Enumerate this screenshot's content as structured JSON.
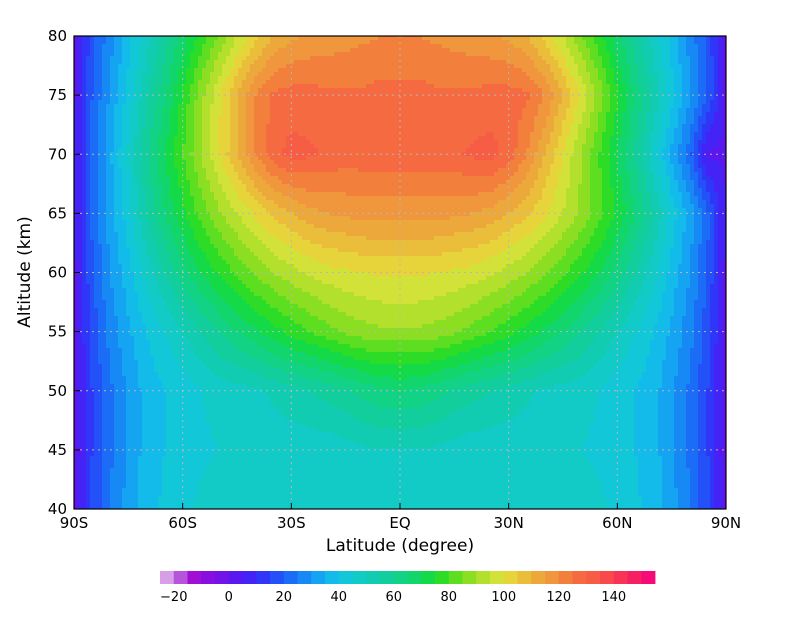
{
  "chart_data": {
    "type": "heatmap",
    "subtype": "filled-contour",
    "title": "",
    "xlabel": "Latitude (degree)",
    "ylabel": "Altitude (km)",
    "xlim": [
      -90,
      90
    ],
    "ylim": [
      40,
      80
    ],
    "x_ticks": [
      {
        "value": -90,
        "label": "90S"
      },
      {
        "value": -60,
        "label": "60S"
      },
      {
        "value": -30,
        "label": "30S"
      },
      {
        "value": 0,
        "label": "EQ"
      },
      {
        "value": 30,
        "label": "30N"
      },
      {
        "value": 60,
        "label": "60N"
      },
      {
        "value": 90,
        "label": "90N"
      }
    ],
    "y_ticks": [
      {
        "value": 40,
        "label": "40"
      },
      {
        "value": 45,
        "label": "45"
      },
      {
        "value": 50,
        "label": "50"
      },
      {
        "value": 55,
        "label": "55"
      },
      {
        "value": 60,
        "label": "60"
      },
      {
        "value": 65,
        "label": "65"
      },
      {
        "value": 70,
        "label": "70"
      },
      {
        "value": 75,
        "label": "75"
      },
      {
        "value": 80,
        "label": "80"
      }
    ],
    "grid": true,
    "grid_style": "dotted",
    "contour_interval": 5,
    "value_range": [
      -25,
      155
    ],
    "z_latitudes": [
      -90,
      -85,
      -80,
      -75,
      -70,
      -65,
      -60,
      -55,
      -50,
      -45,
      -40,
      -35,
      -30,
      -25,
      -20,
      -15,
      -10,
      -5,
      0,
      5,
      10,
      15,
      20,
      25,
      30,
      35,
      40,
      45,
      50,
      55,
      60,
      65,
      70,
      75,
      80,
      85,
      90
    ],
    "z_altitudes": [
      40,
      45,
      50,
      55,
      60,
      65,
      70,
      75,
      80
    ],
    "z_values": [
      [
        0,
        16,
        25,
        32,
        38,
        41,
        44,
        46,
        48,
        48,
        48,
        48,
        48,
        48,
        46,
        46,
        46,
        47,
        48,
        47,
        46,
        46,
        46,
        48,
        48,
        48,
        48,
        48,
        48,
        46,
        44,
        41,
        38,
        32,
        25,
        16,
        0
      ],
      [
        0,
        15,
        24,
        31,
        37,
        40,
        42,
        44,
        45,
        46,
        46,
        47,
        47,
        47,
        47,
        48,
        49,
        50,
        50,
        50,
        49,
        48,
        47,
        47,
        47,
        47,
        46,
        46,
        45,
        44,
        42,
        40,
        37,
        31,
        24,
        15,
        0
      ],
      [
        1,
        15,
        24,
        31,
        37,
        40,
        42,
        45,
        47,
        48,
        49,
        51,
        53,
        55,
        57,
        59,
        62,
        64,
        65,
        64,
        62,
        59,
        57,
        55,
        53,
        51,
        49,
        48,
        47,
        45,
        42,
        40,
        37,
        31,
        24,
        15,
        1
      ],
      [
        2,
        17,
        27,
        34,
        40,
        45,
        50,
        55,
        60,
        65,
        69,
        73,
        77,
        80,
        83,
        86,
        88,
        89,
        89,
        89,
        88,
        86,
        83,
        80,
        77,
        73,
        69,
        65,
        60,
        55,
        50,
        45,
        40,
        34,
        27,
        17,
        2
      ],
      [
        3,
        19,
        30,
        38,
        47,
        55,
        63,
        70,
        76,
        81,
        86,
        90,
        93,
        96,
        98,
        99,
        100,
        101,
        101,
        101,
        100,
        99,
        98,
        96,
        93,
        90,
        86,
        81,
        76,
        70,
        63,
        55,
        47,
        38,
        30,
        19,
        3
      ],
      [
        4,
        21,
        33,
        43,
        55,
        65,
        74,
        82,
        89,
        95,
        101,
        106,
        110,
        113,
        115,
        116,
        117,
        117,
        117,
        117,
        117,
        116,
        115,
        113,
        110,
        106,
        101,
        95,
        89,
        82,
        74,
        65,
        55,
        43,
        33,
        21,
        4
      ],
      [
        4,
        22,
        34,
        46,
        59,
        70,
        80,
        90,
        100,
        110,
        120,
        128,
        132,
        131,
        129,
        128,
        128,
        128,
        128,
        128,
        128,
        129,
        131,
        132,
        128,
        120,
        110,
        100,
        90,
        80,
        70,
        59,
        46,
        34,
        22,
        4,
        4
      ],
      [
        3,
        20,
        31,
        42,
        54,
        64,
        76,
        88,
        99,
        110,
        120,
        126,
        127,
        127,
        126,
        126,
        126,
        127,
        127,
        127,
        126,
        126,
        126,
        127,
        127,
        126,
        120,
        110,
        99,
        88,
        76,
        64,
        54,
        42,
        31,
        20,
        3
      ],
      [
        2,
        18,
        28,
        38,
        48,
        57,
        67,
        77,
        86,
        95,
        103,
        110,
        114,
        116,
        117,
        118,
        119,
        120,
        120,
        120,
        119,
        118,
        117,
        116,
        114,
        110,
        103,
        95,
        86,
        77,
        67,
        57,
        48,
        38,
        28,
        18,
        2
      ]
    ],
    "colorbar": {
      "start": -25,
      "step": 5,
      "colors": [
        "#d89ee6",
        "#b655dc",
        "#9f10d4",
        "#880fe0",
        "#7213e8",
        "#5a18ef",
        "#4323f5",
        "#2f36f7",
        "#2350f7",
        "#1b6cf7",
        "#1689f5",
        "#14a4f2",
        "#12bbea",
        "#12c8d8",
        "#12cbc6",
        "#12ccb2",
        "#12ce9c",
        "#12d286",
        "#12d66c",
        "#14da48",
        "#2cdc26",
        "#5ede20",
        "#8cde22",
        "#b2e02c",
        "#d2e238",
        "#e6d43a",
        "#eabd3a",
        "#eda83c",
        "#f0963c",
        "#f27f3c",
        "#f56a40",
        "#f75c44",
        "#f84a4c",
        "#f73456",
        "#f52062",
        "#f50a78"
      ],
      "tick_labels": [
        "-20",
        "0",
        "20",
        "40",
        "60",
        "80",
        "100",
        "120",
        "140"
      ],
      "tick_values": [
        -20,
        0,
        20,
        40,
        60,
        80,
        100,
        120,
        140
      ]
    }
  }
}
